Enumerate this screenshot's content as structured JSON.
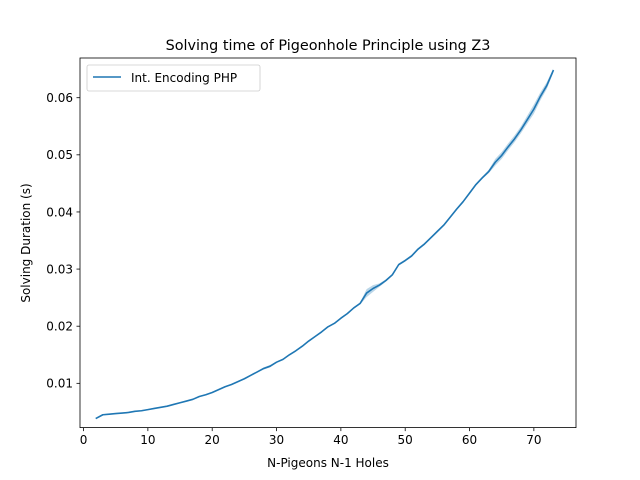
{
  "chart_data": {
    "type": "line",
    "title": "Solving time of Pigeonhole Principle using Z3",
    "xlabel": "N-Pigeons N-1 Holes",
    "ylabel": "Solving Duration (s)",
    "xlim": [
      -0.55,
      76.55
    ],
    "ylim": [
      0.00225,
      0.06695
    ],
    "xticks": [
      0,
      10,
      20,
      30,
      40,
      50,
      60,
      70
    ],
    "yticks": [
      0.01,
      0.02,
      0.03,
      0.04,
      0.05,
      0.06
    ],
    "xtick_labels": [
      "0",
      "10",
      "20",
      "30",
      "40",
      "50",
      "60",
      "70"
    ],
    "ytick_labels": [
      "0.01",
      "0.02",
      "0.03",
      "0.04",
      "0.05",
      "0.06"
    ],
    "legend": "top-left",
    "grid": false,
    "series": [
      {
        "name": "Int. Encoding PHP",
        "color": "#1f77b4",
        "x": [
          2,
          3,
          4,
          5,
          6,
          7,
          8,
          9,
          10,
          11,
          12,
          13,
          14,
          15,
          16,
          17,
          18,
          19,
          20,
          21,
          22,
          23,
          24,
          25,
          26,
          27,
          28,
          29,
          30,
          31,
          32,
          33,
          34,
          35,
          36,
          37,
          38,
          39,
          40,
          41,
          42,
          43,
          44,
          45,
          46,
          47,
          48,
          49,
          50,
          51,
          52,
          53,
          54,
          55,
          56,
          57,
          58,
          59,
          60,
          61,
          62,
          63,
          64,
          65,
          66,
          67,
          68,
          69,
          70,
          71,
          72,
          73
        ],
        "y": [
          0.0039,
          0.0045,
          0.0046,
          0.0047,
          0.0048,
          0.0049,
          0.0051,
          0.0052,
          0.0054,
          0.0056,
          0.0058,
          0.006,
          0.0063,
          0.0066,
          0.0069,
          0.0072,
          0.0077,
          0.008,
          0.0084,
          0.0089,
          0.0094,
          0.0098,
          0.0103,
          0.0108,
          0.0114,
          0.012,
          0.0126,
          0.013,
          0.0137,
          0.0142,
          0.015,
          0.0157,
          0.0165,
          0.0174,
          0.0182,
          0.019,
          0.0199,
          0.0205,
          0.0214,
          0.0222,
          0.0232,
          0.024,
          0.0258,
          0.0266,
          0.0272,
          0.028,
          0.029,
          0.0308,
          0.0315,
          0.0323,
          0.0335,
          0.0344,
          0.0355,
          0.0366,
          0.0377,
          0.0391,
          0.0405,
          0.0418,
          0.0433,
          0.0448,
          0.046,
          0.0471,
          0.0487,
          0.0499,
          0.0514,
          0.0528,
          0.0544,
          0.0562,
          0.058,
          0.0602,
          0.0621,
          0.0647
        ],
        "band": [
          0.0001,
          0.0001,
          0.0001,
          0.0001,
          0.0001,
          0.0001,
          0.0001,
          0.0001,
          0.0001,
          0.0001,
          0.0001,
          0.0001,
          0.0001,
          0.0001,
          0.0001,
          0.0001,
          0.0001,
          0.0001,
          0.0001,
          0.0001,
          0.0001,
          0.0001,
          0.0001,
          0.0001,
          0.0001,
          0.0001,
          0.0002,
          0.0002,
          0.0001,
          0.0001,
          0.0001,
          0.0001,
          0.0001,
          0.0001,
          0.0001,
          0.0001,
          0.0001,
          0.0001,
          0.0001,
          0.0001,
          0.0001,
          0.0002,
          0.0007,
          0.0006,
          0.0003,
          0.0002,
          0.0002,
          0.0002,
          0.0002,
          0.0002,
          0.0002,
          0.0002,
          0.0002,
          0.0002,
          0.0002,
          0.0002,
          0.0002,
          0.0002,
          0.0002,
          0.0002,
          0.0002,
          0.0003,
          0.0006,
          0.0006,
          0.0006,
          0.0006,
          0.0006,
          0.0007,
          0.0008,
          0.0007,
          0.0006,
          0.0004
        ]
      }
    ]
  }
}
